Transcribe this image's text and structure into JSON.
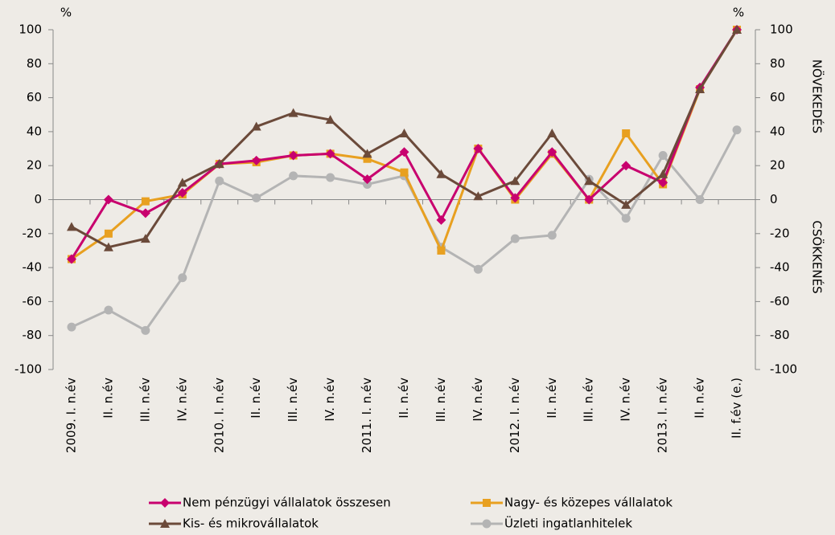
{
  "chart_data": {
    "type": "line",
    "y_unit": "%",
    "y2_unit": "%",
    "right_labels": [
      "NÖVEKEDÉS",
      "CSÖKKENÉS"
    ],
    "categories": [
      "2009. I. n.év",
      "II. n.év",
      "III. n.év",
      "IV. n.év",
      "2010. I. n.év",
      "II. n.év",
      "III. n.év",
      "IV. n.év",
      "2011. I. n.év",
      "II. n.év",
      "III. n.év",
      "IV. n.év",
      "2012. I. n.év",
      "II. n.év",
      "III. n.év",
      "IV. n.év",
      "2013. I. n.év",
      "II. n.év",
      "II. f.év (e.)"
    ],
    "series": [
      {
        "name": "Nem pénzügyi vállalatok összesen",
        "color": "#c8006e",
        "marker": "diamond",
        "values": [
          -35,
          0,
          -8,
          4,
          21,
          23,
          26,
          27,
          12,
          28,
          -12,
          30,
          1,
          28,
          0,
          20,
          10,
          66,
          100
        ]
      },
      {
        "name": "Nagy- és közepes vállalatok",
        "color": "#e8a020",
        "marker": "square",
        "values": [
          -35,
          -20,
          -1,
          3,
          21,
          22,
          26,
          27,
          24,
          16,
          -30,
          30,
          0,
          27,
          0,
          39,
          9,
          65,
          100
        ]
      },
      {
        "name": "Kis- és mikrovállalatok",
        "color": "#6b4a3a",
        "marker": "triangle",
        "values": [
          -16,
          -28,
          -23,
          10,
          21,
          43,
          51,
          47,
          27,
          39,
          15,
          2,
          11,
          39,
          11,
          -3,
          15,
          65,
          100
        ]
      },
      {
        "name": "Üzleti ingatlanhitelek",
        "color": "#b4b4b4",
        "marker": "circle",
        "values": [
          -75,
          -65,
          -77,
          -46,
          11,
          1,
          14,
          13,
          9,
          14,
          -28,
          -41,
          -23,
          -21,
          12,
          -11,
          26,
          0,
          41
        ]
      }
    ],
    "ylim": [
      -100,
      100
    ],
    "yticks": [
      -100,
      -80,
      -60,
      -40,
      -20,
      0,
      20,
      40,
      60,
      80,
      100
    ],
    "y2lim": [
      -100,
      100
    ],
    "y2ticks": [
      -100,
      -80,
      -60,
      -40,
      -20,
      0,
      20,
      40,
      60,
      80,
      100
    ]
  }
}
